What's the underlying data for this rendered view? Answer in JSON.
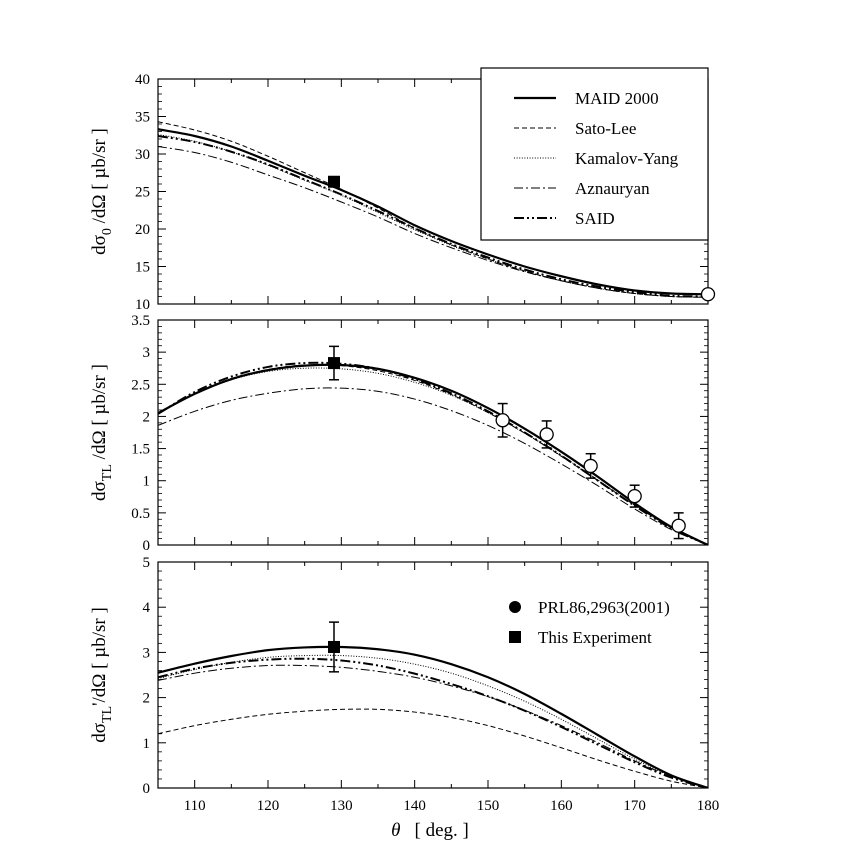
{
  "chart_data": [
    {
      "type": "line",
      "ylabel": "dσ0 /dΩ [ µb/sr ]",
      "ylabel_main": "dσ",
      "ylabel_sub": "0",
      "ylabel_rest": " /dΩ [ µb/sr ]",
      "xlim": [
        105,
        180
      ],
      "ylim": [
        10,
        40
      ],
      "yticks": [
        10,
        15,
        20,
        25,
        30,
        35,
        40
      ],
      "x": [
        105,
        110,
        115,
        120,
        125,
        130,
        135,
        140,
        145,
        150,
        155,
        160,
        165,
        170,
        175,
        180
      ],
      "series": [
        {
          "name": "MAID 2000",
          "values": [
            33.3,
            32.4,
            31.0,
            29.1,
            27.1,
            25.2,
            23.0,
            20.5,
            18.4,
            16.6,
            15.0,
            13.7,
            12.6,
            11.8,
            11.4,
            11.3
          ]
        },
        {
          "name": "Sato-Lee",
          "values": [
            34.3,
            33.2,
            31.7,
            29.7,
            27.5,
            25.3,
            22.8,
            20.1,
            17.9,
            16.0,
            14.4,
            13.1,
            12.1,
            11.4,
            11.0,
            10.9
          ]
        },
        {
          "name": "Kamalov-Yang",
          "values": [
            32.6,
            31.7,
            30.3,
            28.5,
            26.5,
            24.5,
            22.2,
            19.9,
            17.8,
            16.0,
            14.4,
            13.1,
            12.1,
            11.4,
            11.0,
            10.9
          ]
        },
        {
          "name": "Aznauryan",
          "values": [
            31.0,
            30.2,
            28.9,
            27.2,
            25.5,
            23.6,
            21.6,
            19.4,
            17.5,
            15.8,
            14.3,
            13.1,
            12.1,
            11.4,
            11.0,
            10.9
          ]
        },
        {
          "name": "SAID",
          "values": [
            32.4,
            31.6,
            30.3,
            28.6,
            26.6,
            24.6,
            22.4,
            20.1,
            18.0,
            16.2,
            14.6,
            13.3,
            12.3,
            11.6,
            11.1,
            11.0
          ]
        }
      ],
      "points": [
        {
          "dataset": "This Experiment",
          "x": 129,
          "y": 26.3,
          "err": 0
        },
        {
          "dataset": "PRL86,2963(2001)",
          "x": 180,
          "y": 11.3,
          "err": 0
        }
      ],
      "legend": [
        "MAID 2000",
        "Sato-Lee",
        "Kamalov-Yang",
        "Aznauryan",
        "SAID"
      ]
    },
    {
      "type": "line",
      "ylabel": "dσTL /dΩ [ µb/sr ]",
      "ylabel_main": "dσ",
      "ylabel_sub": "TL",
      "ylabel_rest": " /dΩ [ µb/sr ]",
      "xlim": [
        105,
        180
      ],
      "ylim": [
        0,
        3.5
      ],
      "yticks": [
        0,
        0.5,
        1,
        1.5,
        2,
        2.5,
        3,
        3.5
      ],
      "x": [
        105,
        110,
        115,
        120,
        125,
        130,
        135,
        140,
        145,
        150,
        155,
        160,
        165,
        170,
        175,
        180
      ],
      "series": [
        {
          "name": "MAID 2000",
          "values": [
            2.05,
            2.35,
            2.58,
            2.72,
            2.79,
            2.8,
            2.74,
            2.6,
            2.4,
            2.13,
            1.81,
            1.45,
            1.06,
            0.65,
            0.28,
            0.0
          ]
        },
        {
          "name": "Sato-Lee",
          "values": [
            2.05,
            2.36,
            2.59,
            2.73,
            2.8,
            2.79,
            2.71,
            2.56,
            2.34,
            2.06,
            1.74,
            1.38,
            1.0,
            0.62,
            0.27,
            0.0
          ]
        },
        {
          "name": "Kamalov-Yang",
          "values": [
            2.05,
            2.35,
            2.57,
            2.7,
            2.75,
            2.74,
            2.67,
            2.53,
            2.33,
            2.06,
            1.74,
            1.39,
            1.01,
            0.62,
            0.27,
            0.0
          ]
        },
        {
          "name": "Aznauryan",
          "values": [
            1.86,
            2.08,
            2.25,
            2.36,
            2.43,
            2.44,
            2.39,
            2.27,
            2.09,
            1.86,
            1.58,
            1.26,
            0.92,
            0.56,
            0.24,
            0.0
          ]
        },
        {
          "name": "SAID",
          "values": [
            2.04,
            2.38,
            2.62,
            2.77,
            2.83,
            2.82,
            2.74,
            2.58,
            2.36,
            2.08,
            1.75,
            1.39,
            1.0,
            0.61,
            0.26,
            0.0
          ]
        }
      ],
      "points": [
        {
          "dataset": "This Experiment",
          "x": 129,
          "y": 2.83,
          "err": 0.26
        },
        {
          "dataset": "PRL86,2963(2001)",
          "x": 152,
          "y": 1.94,
          "err": 0.26
        },
        {
          "dataset": "PRL86,2963(2001)",
          "x": 158,
          "y": 1.72,
          "err": 0.21
        },
        {
          "dataset": "PRL86,2963(2001)",
          "x": 164,
          "y": 1.23,
          "err": 0.19
        },
        {
          "dataset": "PRL86,2963(2001)",
          "x": 170,
          "y": 0.76,
          "err": 0.17
        },
        {
          "dataset": "PRL86,2963(2001)",
          "x": 176,
          "y": 0.3,
          "err": 0.2
        }
      ]
    },
    {
      "type": "line",
      "ylabel": "dσTL'/dΩ [ µb/sr ]",
      "ylabel_main": "dσ",
      "ylabel_sub": "TL",
      "ylabel_rest": "'/dΩ [ µb/sr ]",
      "xlabel": "θ [ deg. ]",
      "xlim": [
        105,
        180
      ],
      "ylim": [
        0,
        5
      ],
      "yticks": [
        0,
        1,
        2,
        3,
        4,
        5
      ],
      "xticks": [
        110,
        120,
        130,
        140,
        150,
        160,
        170,
        180
      ],
      "x": [
        105,
        110,
        115,
        120,
        125,
        130,
        135,
        140,
        145,
        150,
        155,
        160,
        165,
        170,
        175,
        180
      ],
      "series": [
        {
          "name": "MAID 2000",
          "values": [
            2.55,
            2.75,
            2.92,
            3.05,
            3.11,
            3.12,
            3.07,
            2.95,
            2.74,
            2.45,
            2.08,
            1.64,
            1.17,
            0.7,
            0.28,
            0.0
          ]
        },
        {
          "name": "Sato-Lee",
          "values": [
            1.2,
            1.38,
            1.52,
            1.63,
            1.7,
            1.74,
            1.74,
            1.68,
            1.56,
            1.38,
            1.15,
            0.89,
            0.62,
            0.37,
            0.15,
            0.0
          ]
        },
        {
          "name": "Kamalov-Yang",
          "values": [
            2.42,
            2.62,
            2.78,
            2.89,
            2.93,
            2.93,
            2.87,
            2.74,
            2.54,
            2.26,
            1.92,
            1.52,
            1.08,
            0.64,
            0.26,
            0.0
          ]
        },
        {
          "name": "Aznauryan",
          "values": [
            2.38,
            2.54,
            2.65,
            2.71,
            2.71,
            2.67,
            2.58,
            2.45,
            2.26,
            2.02,
            1.72,
            1.38,
            1.0,
            0.6,
            0.25,
            0.0
          ]
        },
        {
          "name": "SAID",
          "values": [
            2.45,
            2.64,
            2.77,
            2.84,
            2.86,
            2.82,
            2.71,
            2.53,
            2.3,
            2.03,
            1.71,
            1.35,
            0.96,
            0.57,
            0.23,
            0.0
          ]
        }
      ],
      "points": [
        {
          "dataset": "This Experiment",
          "x": 129,
          "y": 3.12,
          "err": 0.55
        }
      ],
      "legend": [
        "PRL86,2963(2001)",
        "This Experiment"
      ]
    }
  ]
}
